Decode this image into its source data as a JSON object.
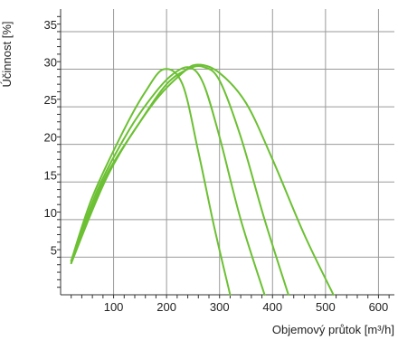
{
  "chart_data": {
    "type": "line",
    "xlabel": "Objemový průtok [m³/h]",
    "ylabel": "Účinnost [%]",
    "xlim": [
      0,
      630
    ],
    "ylim": [
      0,
      38
    ],
    "x_ticks": [
      100,
      200,
      300,
      400,
      500,
      600
    ],
    "y_ticks": [
      5,
      10,
      15,
      20,
      25,
      30,
      35
    ],
    "grid": true,
    "legend": "none",
    "series_color": "#6cc033",
    "series": [
      {
        "x": [
          20,
          60,
          120,
          160,
          195,
          230,
          260,
          290,
          320
        ],
        "y": [
          4.5,
          13,
          22,
          27,
          30,
          28,
          19,
          9,
          0
        ]
      },
      {
        "x": [
          20,
          70,
          130,
          180,
          215,
          245,
          270,
          300,
          340,
          385
        ],
        "y": [
          4.5,
          14,
          22,
          27,
          29.5,
          30.2,
          28,
          21,
          10,
          0
        ]
      },
      {
        "x": [
          20,
          80,
          150,
          200,
          240,
          270,
          300,
          340,
          385,
          430
        ],
        "y": [
          4.2,
          15,
          23,
          28,
          30,
          30.3,
          28.5,
          21,
          10,
          0
        ]
      },
      {
        "x": [
          20,
          90,
          170,
          230,
          260,
          300,
          350,
          400,
          460,
          515
        ],
        "y": [
          4.2,
          16,
          25,
          29.5,
          30.6,
          29.5,
          25.5,
          18,
          8,
          0
        ]
      }
    ]
  }
}
